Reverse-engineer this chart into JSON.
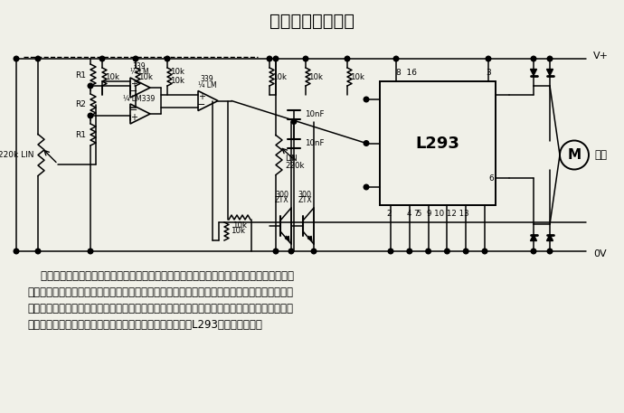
{
  "title": "电机速度控制电路",
  "bg_color": "#f0f0e8",
  "text_line1": "    上述双向比例电机控制器的缺点是，当电位器滑到中心位置时，电机并不停转，而是继续嗡",
  "text_line2": "动。这是因为将电位器精确地滑到中点而使振荡波形正负半周严格对称是很困难的。这里介绍的",
  "text_line3": "改进电路使用了第二个电位器，它与第一个电位器同轴旋转，用来禁止电机在中心处转动。该电",
  "text_line4": "位器连接在两条电源线之间，激励一个窗口比较器，以驱动L293的禁止输入端。"
}
